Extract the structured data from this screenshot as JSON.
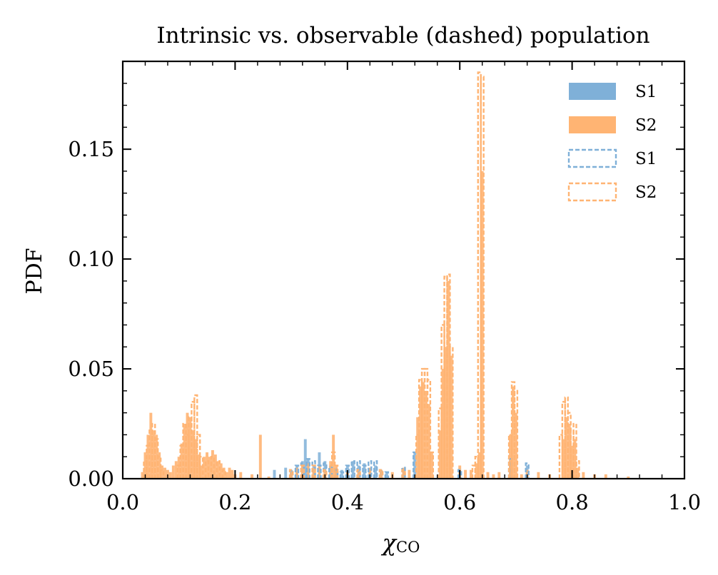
{
  "chart_data": {
    "type": "histogram",
    "title": "Intrinsic vs. observable (dashed) population",
    "xlabel": "χ",
    "xlabel_sub": "CO",
    "ylabel": "PDF",
    "xlim": [
      0.0,
      1.0
    ],
    "ylim": [
      0.0,
      0.19
    ],
    "xticks": [
      "0.0",
      "0.2",
      "0.4",
      "0.6",
      "0.8",
      "1.0"
    ],
    "yticks": [
      "0.00",
      "0.05",
      "0.10",
      "0.15"
    ],
    "bin_width": 0.005,
    "legend_position": "top-right",
    "colors": {
      "S1": "#7fb0d8",
      "S2": "#ffb473"
    },
    "legend": [
      {
        "label": "S1",
        "style": "filled",
        "color": "#7fb0d8"
      },
      {
        "label": "S2",
        "style": "filled",
        "color": "#ffb473"
      },
      {
        "label": "S1",
        "style": "dashed",
        "color": "#7fb0d8"
      },
      {
        "label": "S2",
        "style": "dashed",
        "color": "#ffb473"
      }
    ],
    "series": [
      {
        "style": "filled",
        "color": "#7fb0d8",
        "x": [
          0.27,
          0.29,
          0.3,
          0.31,
          0.32,
          0.325,
          0.33,
          0.34,
          0.35,
          0.36,
          0.37,
          0.38,
          0.39,
          0.4,
          0.41,
          0.42,
          0.43,
          0.44,
          0.45,
          0.46,
          0.47,
          0.5,
          0.52,
          0.69,
          0.72
        ],
        "y": [
          0.004,
          0.005,
          0.004,
          0.006,
          0.008,
          0.018,
          0.009,
          0.006,
          0.012,
          0.008,
          0.006,
          0.005,
          0.004,
          0.006,
          0.008,
          0.006,
          0.007,
          0.005,
          0.006,
          0.004,
          0.003,
          0.004,
          0.012,
          0.008,
          0.006
        ]
      },
      {
        "style": "filled",
        "color": "#ffb473",
        "x": [
          0.035,
          0.04,
          0.045,
          0.05,
          0.055,
          0.06,
          0.065,
          0.07,
          0.075,
          0.08,
          0.085,
          0.09,
          0.095,
          0.1,
          0.105,
          0.11,
          0.115,
          0.12,
          0.125,
          0.13,
          0.135,
          0.14,
          0.145,
          0.15,
          0.155,
          0.16,
          0.165,
          0.17,
          0.175,
          0.18,
          0.185,
          0.19,
          0.195,
          0.2,
          0.21,
          0.23,
          0.245,
          0.26,
          0.3,
          0.31,
          0.32,
          0.33,
          0.34,
          0.35,
          0.36,
          0.37,
          0.375,
          0.38,
          0.4,
          0.42,
          0.44,
          0.46,
          0.48,
          0.5,
          0.51,
          0.525,
          0.53,
          0.535,
          0.54,
          0.545,
          0.55,
          0.565,
          0.57,
          0.575,
          0.58,
          0.585,
          0.6,
          0.61,
          0.62,
          0.63,
          0.635,
          0.64,
          0.65,
          0.66,
          0.67,
          0.69,
          0.695,
          0.7,
          0.71,
          0.72,
          0.74,
          0.76,
          0.785,
          0.79,
          0.795,
          0.8,
          0.805,
          0.81,
          0.82,
          0.84,
          0.86,
          0.9
        ],
        "y": [
          0.003,
          0.012,
          0.02,
          0.03,
          0.022,
          0.02,
          0.012,
          0.006,
          0.005,
          0.004,
          0.003,
          0.006,
          0.008,
          0.01,
          0.016,
          0.025,
          0.03,
          0.028,
          0.022,
          0.018,
          0.011,
          0.006,
          0.01,
          0.012,
          0.01,
          0.013,
          0.011,
          0.008,
          0.007,
          0.005,
          0.003,
          0.005,
          0.004,
          0.002,
          0.003,
          0.002,
          0.02,
          0.001,
          0.003,
          0.005,
          0.006,
          0.007,
          0.005,
          0.006,
          0.004,
          0.008,
          0.02,
          0.006,
          0.004,
          0.003,
          0.005,
          0.004,
          0.003,
          0.005,
          0.004,
          0.028,
          0.042,
          0.044,
          0.04,
          0.034,
          0.012,
          0.022,
          0.05,
          0.06,
          0.09,
          0.056,
          0.006,
          0.004,
          0.004,
          0.007,
          0.012,
          0.14,
          0.003,
          0.002,
          0.003,
          0.02,
          0.042,
          0.03,
          0.002,
          0.004,
          0.003,
          0.002,
          0.018,
          0.028,
          0.025,
          0.015,
          0.018,
          0.005,
          0.003,
          0.002,
          0.002,
          0.001
        ]
      },
      {
        "style": "dashed",
        "color": "#7fb0d8",
        "x": [
          0.3,
          0.31,
          0.32,
          0.33,
          0.34,
          0.35,
          0.36,
          0.37,
          0.38,
          0.39,
          0.4,
          0.41,
          0.42,
          0.43,
          0.44,
          0.45,
          0.46,
          0.47,
          0.5,
          0.52,
          0.6,
          0.69,
          0.72
        ],
        "y": [
          0.004,
          0.006,
          0.007,
          0.009,
          0.008,
          0.006,
          0.007,
          0.005,
          0.004,
          0.003,
          0.006,
          0.008,
          0.008,
          0.006,
          0.008,
          0.008,
          0.004,
          0.003,
          0.005,
          0.012,
          0.004,
          0.009,
          0.007
        ]
      },
      {
        "style": "dashed",
        "color": "#ffb473",
        "x": [
          0.04,
          0.045,
          0.05,
          0.055,
          0.06,
          0.065,
          0.07,
          0.1,
          0.105,
          0.11,
          0.115,
          0.12,
          0.125,
          0.13,
          0.135,
          0.14,
          0.15,
          0.16,
          0.17,
          0.18,
          0.3,
          0.32,
          0.34,
          0.36,
          0.375,
          0.38,
          0.42,
          0.46,
          0.5,
          0.525,
          0.53,
          0.535,
          0.54,
          0.545,
          0.55,
          0.565,
          0.57,
          0.575,
          0.58,
          0.585,
          0.625,
          0.63,
          0.635,
          0.64,
          0.69,
          0.695,
          0.7,
          0.78,
          0.785,
          0.79,
          0.795,
          0.8,
          0.805,
          0.81
        ],
        "y": [
          0.008,
          0.015,
          0.022,
          0.025,
          0.018,
          0.01,
          0.004,
          0.006,
          0.015,
          0.025,
          0.02,
          0.028,
          0.035,
          0.038,
          0.02,
          0.01,
          0.008,
          0.01,
          0.008,
          0.004,
          0.004,
          0.006,
          0.006,
          0.004,
          0.012,
          0.006,
          0.004,
          0.004,
          0.004,
          0.02,
          0.045,
          0.05,
          0.05,
          0.045,
          0.012,
          0.032,
          0.07,
          0.092,
          0.093,
          0.06,
          0.006,
          0.01,
          0.185,
          0.183,
          0.02,
          0.044,
          0.04,
          0.02,
          0.035,
          0.037,
          0.03,
          0.022,
          0.025,
          0.008
        ]
      }
    ]
  }
}
